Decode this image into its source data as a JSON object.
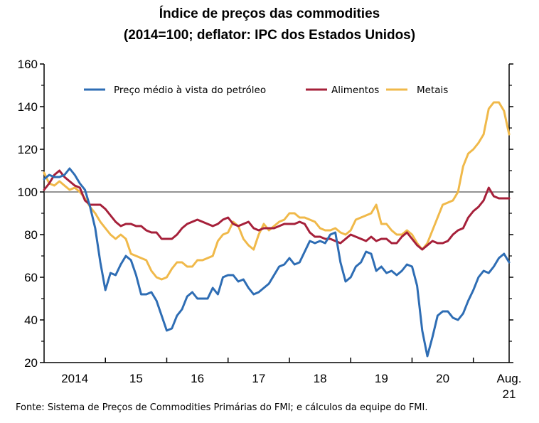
{
  "title_line1": "Índice de preços das commodities",
  "title_line2": "(2014=100; deflator: IPC dos Estados Unidos)",
  "source": "Fonte: Sistema de Preços de Commodities Primárias do FMI; e cálculos da equipe do FMI.",
  "colors": {
    "oil": "#2e6db4",
    "food": "#a6203a",
    "metals": "#f0b94a",
    "reference": "#555555",
    "axis": "#000000"
  },
  "chart_data": {
    "type": "line",
    "x_start": "2014-01",
    "x_end": "2021-08",
    "x_tick_labels": [
      "2014",
      "15",
      "16",
      "17",
      "18",
      "19",
      "20",
      "Aug.\n21"
    ],
    "y_ticks": [
      20,
      40,
      60,
      80,
      100,
      120,
      140,
      160
    ],
    "ylim": [
      20,
      160
    ],
    "reference_line": 100,
    "legend": [
      "Preço médio à vista do petróleo",
      "Alimentos",
      "Metais"
    ],
    "series": [
      {
        "name": "Preço médio à vista do petróleo",
        "color_key": "oil",
        "values": [
          106,
          108,
          107,
          107,
          108,
          111,
          108,
          104,
          101,
          93,
          83,
          67,
          54,
          62,
          61,
          66,
          70,
          68,
          61,
          52,
          52,
          53,
          49,
          42,
          35,
          36,
          42,
          45,
          51,
          53,
          50,
          50,
          50,
          55,
          52,
          60,
          61,
          61,
          58,
          59,
          55,
          52,
          53,
          55,
          57,
          61,
          65,
          66,
          69,
          66,
          67,
          72,
          77,
          76,
          77,
          76,
          80,
          81,
          67,
          58,
          60,
          65,
          67,
          72,
          71,
          63,
          65,
          62,
          63,
          61,
          63,
          66,
          65,
          56,
          35,
          23,
          32,
          42,
          44,
          44,
          41,
          40,
          43,
          49,
          54,
          60,
          63,
          62,
          65,
          69,
          71,
          67
        ]
      },
      {
        "name": "Alimentos",
        "color_key": "food",
        "values": [
          101,
          104,
          108,
          110,
          107,
          105,
          103,
          102,
          96,
          94,
          94,
          94,
          92,
          89,
          86,
          84,
          85,
          85,
          84,
          84,
          82,
          81,
          81,
          78,
          78,
          78,
          80,
          83,
          85,
          86,
          87,
          86,
          85,
          84,
          85,
          87,
          88,
          85,
          84,
          85,
          86,
          83,
          82,
          83,
          83,
          83,
          84,
          85,
          85,
          85,
          86,
          85,
          81,
          79,
          79,
          78,
          78,
          77,
          76,
          78,
          80,
          79,
          78,
          77,
          79,
          77,
          78,
          78,
          76,
          76,
          79,
          81,
          78,
          75,
          73,
          75,
          77,
          76,
          76,
          77,
          80,
          82,
          83,
          88,
          91,
          93,
          96,
          102,
          98,
          97,
          97,
          97
        ]
      },
      {
        "name": "Metais",
        "color_key": "metals",
        "values": [
          109,
          104,
          103,
          105,
          103,
          101,
          102,
          100,
          97,
          93,
          90,
          86,
          83,
          80,
          78,
          80,
          78,
          71,
          70,
          69,
          68,
          63,
          60,
          59,
          60,
          64,
          67,
          67,
          65,
          65,
          68,
          68,
          69,
          70,
          77,
          80,
          81,
          86,
          84,
          78,
          75,
          73,
          80,
          85,
          82,
          84,
          86,
          87,
          90,
          90,
          88,
          88,
          87,
          86,
          83,
          82,
          82,
          83,
          81,
          80,
          82,
          87,
          88,
          89,
          90,
          94,
          85,
          85,
          82,
          80,
          80,
          82,
          80,
          76,
          73,
          76,
          82,
          88,
          94,
          95,
          96,
          100,
          112,
          118,
          120,
          123,
          127,
          139,
          142,
          142,
          138,
          127
        ]
      }
    ]
  }
}
